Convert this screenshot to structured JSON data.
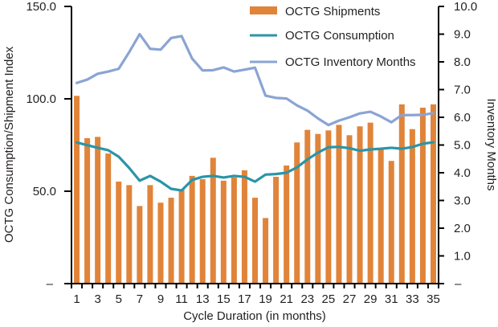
{
  "chart_data": {
    "type": "bar",
    "title": "",
    "xlabel": "Cycle Duration (in months)",
    "ylabel": "OCTG Consumption/Shipment Index",
    "y2label": "Inventory Months",
    "ylim": [
      0,
      150
    ],
    "y2lim": [
      0,
      10
    ],
    "yticks": [
      "–",
      "50.0",
      "100.0",
      "150.0"
    ],
    "y2ticks": [
      "–",
      "1.0",
      "2.0",
      "3.0",
      "4.0",
      "5.0",
      "6.0",
      "7.0",
      "8.0",
      "9.0",
      "10.0"
    ],
    "grid": false,
    "legend_position": "top-right",
    "categories": [
      1,
      2,
      3,
      4,
      5,
      6,
      7,
      8,
      9,
      10,
      11,
      12,
      13,
      14,
      15,
      16,
      17,
      18,
      19,
      20,
      21,
      22,
      23,
      24,
      25,
      26,
      27,
      28,
      29,
      30,
      31,
      32,
      33,
      34,
      35
    ],
    "xtick_labels": [
      "1",
      "3",
      "5",
      "7",
      "9",
      "11",
      "13",
      "15",
      "17",
      "19",
      "21",
      "23",
      "25",
      "27",
      "29",
      "31",
      "33",
      "35"
    ],
    "series": [
      {
        "name": "OCTG Shipments",
        "kind": "bar",
        "axis": "left",
        "color": "#e0843a",
        "values": [
          101.6,
          78.7,
          79.4,
          70.4,
          55.2,
          53.3,
          42.0,
          53.3,
          43.8,
          46.5,
          50.9,
          58.3,
          56.5,
          68.1,
          55.7,
          57.5,
          61.3,
          46.5,
          35.5,
          57.8,
          63.9,
          76.4,
          83.2,
          81.0,
          82.9,
          85.9,
          80.3,
          85.1,
          87.1,
          73.0,
          66.4,
          97.0,
          83.6,
          95.2,
          97.0
        ]
      },
      {
        "name": "OCTG Consumption",
        "kind": "line",
        "axis": "left",
        "color": "#2a95a8",
        "values": [
          76.4,
          74.9,
          73.5,
          72.2,
          68.7,
          62.6,
          55.7,
          58.3,
          55.2,
          51.3,
          50.4,
          56.1,
          57.8,
          58.3,
          57.4,
          58.3,
          57.8,
          55.2,
          59.0,
          59.3,
          60.0,
          62.9,
          67.2,
          70.9,
          73.8,
          74.0,
          73.3,
          71.9,
          72.6,
          73.0,
          73.5,
          73.0,
          73.9,
          75.7,
          76.5
        ]
      },
      {
        "name": "OCTG Inventory Months",
        "kind": "line",
        "axis": "right",
        "color": "#8aa4d3",
        "values": [
          7.24,
          7.36,
          7.57,
          7.65,
          7.75,
          8.35,
          9.0,
          8.47,
          8.44,
          8.86,
          8.93,
          8.12,
          7.69,
          7.7,
          7.8,
          7.65,
          7.72,
          7.79,
          6.78,
          6.7,
          6.68,
          6.43,
          6.24,
          5.96,
          5.72,
          5.88,
          6.0,
          6.14,
          6.2,
          6.03,
          5.82,
          6.08,
          6.08,
          6.09,
          6.15
        ]
      }
    ]
  }
}
